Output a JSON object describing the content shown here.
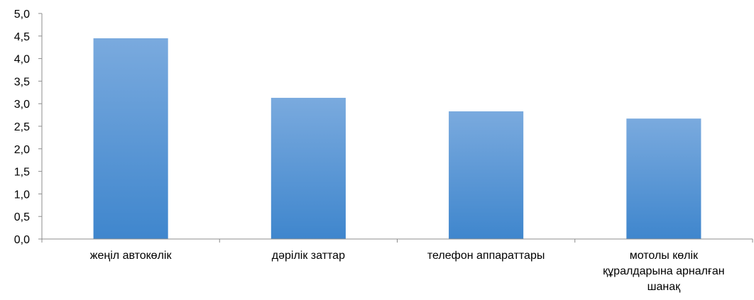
{
  "chart_data": {
    "type": "bar",
    "categories": [
      [
        "жеңіл автокөлік"
      ],
      [
        "дәрілік заттар"
      ],
      [
        "телефон аппараттары"
      ],
      [
        "мотолы көлік",
        "құралдарына арналған",
        "шанақ"
      ]
    ],
    "values": [
      4.45,
      3.13,
      2.83,
      2.67
    ],
    "ylim": [
      0,
      5
    ],
    "yticks": [
      "0,0",
      "0,5",
      "1,0",
      "1,5",
      "2,0",
      "2,5",
      "3,0",
      "3,5",
      "4,0",
      "4,5",
      "5,0"
    ],
    "grid": false,
    "legend": "none",
    "colors": {
      "bar_top": "#7aaade",
      "bar_bottom": "#3f86cd",
      "axis": "#8c8c8c"
    }
  }
}
